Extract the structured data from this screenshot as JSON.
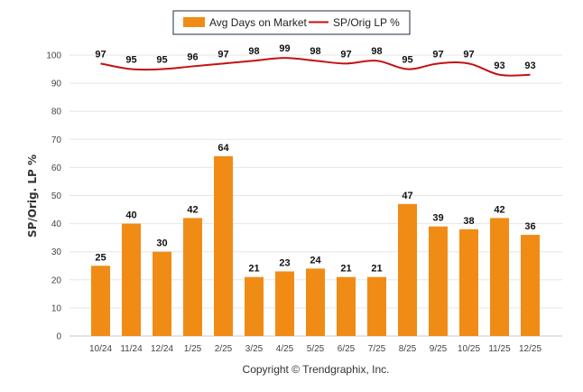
{
  "copyright": "Copyright © Trendgraphix, Inc.",
  "colors": {
    "bar": "#f08c16",
    "line": "#c41212",
    "legend_border": "#1f2d3d"
  },
  "chart_data": {
    "type": "bar",
    "categories": [
      "10/24",
      "11/24",
      "12/24",
      "1/25",
      "2/25",
      "3/25",
      "4/25",
      "5/25",
      "6/25",
      "7/25",
      "8/25",
      "9/25",
      "10/25",
      "11/25",
      "12/25"
    ],
    "series": [
      {
        "name": "Avg Days on Market",
        "type": "bar",
        "values": [
          25,
          40,
          30,
          42,
          64,
          21,
          23,
          24,
          21,
          21,
          47,
          39,
          38,
          42,
          36
        ]
      },
      {
        "name": "SP/Orig LP %",
        "type": "line",
        "values": [
          97,
          95,
          95,
          96,
          97,
          98,
          99,
          98,
          97,
          98,
          95,
          97,
          97,
          93,
          93
        ]
      }
    ],
    "ylabel": "SP/Orig. LP %",
    "ylim": [
      0,
      100
    ],
    "yticks": [
      0,
      10,
      20,
      30,
      40,
      50,
      60,
      70,
      80,
      90,
      100
    ],
    "grid": true,
    "legend": "top-center"
  }
}
